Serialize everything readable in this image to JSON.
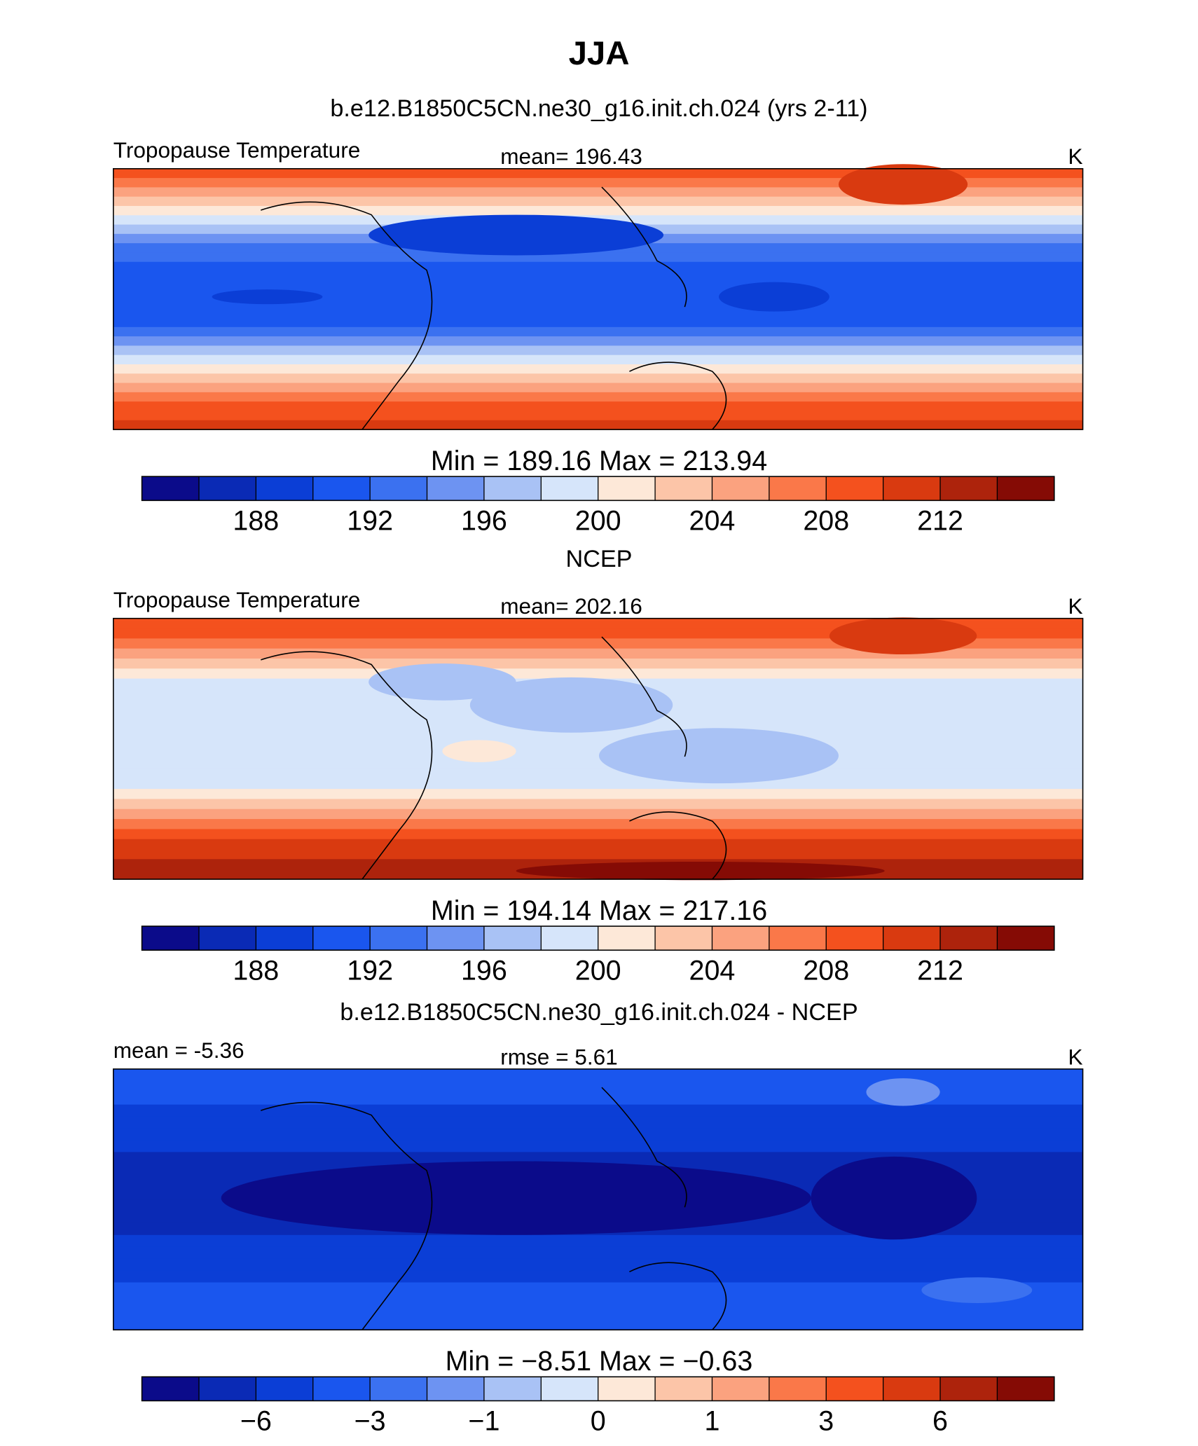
{
  "header": {
    "title": "JJA",
    "subtitle": "b.e12.B1850C5CN.ne30_g16.init.ch.024 (yrs 2-11)"
  },
  "palette": [
    "#0b0b8a",
    "#0a2ab5",
    "#0b3ed6",
    "#1a56ee",
    "#3b71f0",
    "#6d93f2",
    "#a9c2f5",
    "#d6e5fa",
    "#fde8d8",
    "#fcc5a8",
    "#fba27f",
    "#fa7849",
    "#f4511e",
    "#d93a10",
    "#ad230c",
    "#850b05"
  ],
  "panels": [
    {
      "left_label": "Tropopause Temperature",
      "center_label": "mean= 196.43",
      "right_label": "K",
      "min_max": "Min = 189.16 Max = 213.94",
      "levels": [
        186,
        188,
        190,
        192,
        194,
        196,
        198,
        200,
        202,
        204,
        206,
        208,
        210,
        212,
        214
      ],
      "ticks": [
        188,
        192,
        196,
        200,
        204,
        208,
        212
      ]
    },
    {
      "title": "NCEP",
      "left_label": "Tropopause Temperature",
      "center_label": "mean= 202.16",
      "right_label": "K",
      "min_max": "Min = 194.14 Max = 217.16",
      "levels": [
        186,
        188,
        190,
        192,
        194,
        196,
        198,
        200,
        202,
        204,
        206,
        208,
        210,
        212,
        214
      ],
      "ticks": [
        188,
        192,
        196,
        200,
        204,
        208,
        212
      ]
    },
    {
      "title": "b.e12.B1850C5CN.ne30_g16.init.ch.024 - NCEP",
      "left_label": "mean = -5.36",
      "center_label": "rmse = 5.61",
      "right_label": "K",
      "min_max": "Min = −8.51 Max = −0.63",
      "levels": [
        -8,
        -6,
        -4,
        -3,
        -2,
        -1,
        -0.5,
        0,
        0.5,
        1,
        2,
        3,
        4,
        6,
        8
      ],
      "ticks": [
        {
          "value": -6,
          "label": "−6"
        },
        {
          "value": -3,
          "label": "−3"
        },
        {
          "value": -1,
          "label": "−1"
        },
        0,
        1,
        3,
        6
      ]
    }
  ]
}
